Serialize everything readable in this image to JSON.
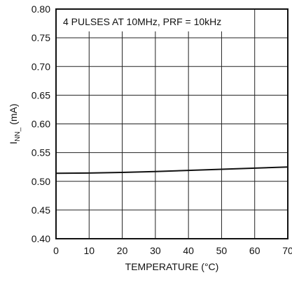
{
  "chart_data": {
    "type": "line",
    "title": "",
    "annotation": "4 PULSES AT 10MHz, PRF = 10kHz",
    "xlabel": "TEMPERATURE (°C)",
    "ylabel": {
      "main": "I",
      "sub": "NN_",
      "unit": " (mA)"
    },
    "xlim": [
      0,
      70
    ],
    "ylim": [
      0.4,
      0.8
    ],
    "x_ticks": [
      0,
      10,
      20,
      30,
      40,
      50,
      60,
      70
    ],
    "x_tick_labels": [
      "0",
      "10",
      "20",
      "30",
      "40",
      "50",
      "60",
      "70"
    ],
    "y_ticks": [
      0.4,
      0.45,
      0.5,
      0.55,
      0.6,
      0.65,
      0.7,
      0.75,
      0.8
    ],
    "y_tick_labels": [
      "0.40",
      "0.45",
      "0.50",
      "0.55",
      "0.60",
      "0.65",
      "0.70",
      "0.75",
      "0.80"
    ],
    "grid": true,
    "series": [
      {
        "x": [
          0,
          10,
          20,
          30,
          40,
          50,
          60,
          70
        ],
        "y": [
          0.514,
          0.5145,
          0.5155,
          0.517,
          0.519,
          0.521,
          0.523,
          0.525
        ]
      }
    ],
    "colors": {
      "line": "#111111",
      "grid": "#222222",
      "frame": "#111111",
      "background": "#ffffff"
    }
  }
}
